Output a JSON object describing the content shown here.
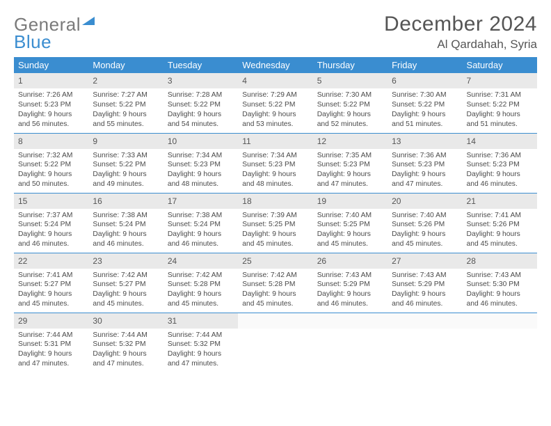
{
  "logo": {
    "text_a": "General",
    "text_b": "Blue"
  },
  "header": {
    "month_title": "December 2024",
    "location": "Al Qardahah, Syria"
  },
  "colors": {
    "header_bg": "#3a8dd0",
    "border": "#3a8dd0",
    "daynum_bg": "#e9e9e9",
    "empty_bg": "#fafafa"
  },
  "weekdays": [
    "Sunday",
    "Monday",
    "Tuesday",
    "Wednesday",
    "Thursday",
    "Friday",
    "Saturday"
  ],
  "weeks": [
    [
      {
        "n": "1",
        "sr": "Sunrise: 7:26 AM",
        "ss": "Sunset: 5:23 PM",
        "dl": "Daylight: 9 hours and 56 minutes."
      },
      {
        "n": "2",
        "sr": "Sunrise: 7:27 AM",
        "ss": "Sunset: 5:22 PM",
        "dl": "Daylight: 9 hours and 55 minutes."
      },
      {
        "n": "3",
        "sr": "Sunrise: 7:28 AM",
        "ss": "Sunset: 5:22 PM",
        "dl": "Daylight: 9 hours and 54 minutes."
      },
      {
        "n": "4",
        "sr": "Sunrise: 7:29 AM",
        "ss": "Sunset: 5:22 PM",
        "dl": "Daylight: 9 hours and 53 minutes."
      },
      {
        "n": "5",
        "sr": "Sunrise: 7:30 AM",
        "ss": "Sunset: 5:22 PM",
        "dl": "Daylight: 9 hours and 52 minutes."
      },
      {
        "n": "6",
        "sr": "Sunrise: 7:30 AM",
        "ss": "Sunset: 5:22 PM",
        "dl": "Daylight: 9 hours and 51 minutes."
      },
      {
        "n": "7",
        "sr": "Sunrise: 7:31 AM",
        "ss": "Sunset: 5:22 PM",
        "dl": "Daylight: 9 hours and 51 minutes."
      }
    ],
    [
      {
        "n": "8",
        "sr": "Sunrise: 7:32 AM",
        "ss": "Sunset: 5:22 PM",
        "dl": "Daylight: 9 hours and 50 minutes."
      },
      {
        "n": "9",
        "sr": "Sunrise: 7:33 AM",
        "ss": "Sunset: 5:22 PM",
        "dl": "Daylight: 9 hours and 49 minutes."
      },
      {
        "n": "10",
        "sr": "Sunrise: 7:34 AM",
        "ss": "Sunset: 5:23 PM",
        "dl": "Daylight: 9 hours and 48 minutes."
      },
      {
        "n": "11",
        "sr": "Sunrise: 7:34 AM",
        "ss": "Sunset: 5:23 PM",
        "dl": "Daylight: 9 hours and 48 minutes."
      },
      {
        "n": "12",
        "sr": "Sunrise: 7:35 AM",
        "ss": "Sunset: 5:23 PM",
        "dl": "Daylight: 9 hours and 47 minutes."
      },
      {
        "n": "13",
        "sr": "Sunrise: 7:36 AM",
        "ss": "Sunset: 5:23 PM",
        "dl": "Daylight: 9 hours and 47 minutes."
      },
      {
        "n": "14",
        "sr": "Sunrise: 7:36 AM",
        "ss": "Sunset: 5:23 PM",
        "dl": "Daylight: 9 hours and 46 minutes."
      }
    ],
    [
      {
        "n": "15",
        "sr": "Sunrise: 7:37 AM",
        "ss": "Sunset: 5:24 PM",
        "dl": "Daylight: 9 hours and 46 minutes."
      },
      {
        "n": "16",
        "sr": "Sunrise: 7:38 AM",
        "ss": "Sunset: 5:24 PM",
        "dl": "Daylight: 9 hours and 46 minutes."
      },
      {
        "n": "17",
        "sr": "Sunrise: 7:38 AM",
        "ss": "Sunset: 5:24 PM",
        "dl": "Daylight: 9 hours and 46 minutes."
      },
      {
        "n": "18",
        "sr": "Sunrise: 7:39 AM",
        "ss": "Sunset: 5:25 PM",
        "dl": "Daylight: 9 hours and 45 minutes."
      },
      {
        "n": "19",
        "sr": "Sunrise: 7:40 AM",
        "ss": "Sunset: 5:25 PM",
        "dl": "Daylight: 9 hours and 45 minutes."
      },
      {
        "n": "20",
        "sr": "Sunrise: 7:40 AM",
        "ss": "Sunset: 5:26 PM",
        "dl": "Daylight: 9 hours and 45 minutes."
      },
      {
        "n": "21",
        "sr": "Sunrise: 7:41 AM",
        "ss": "Sunset: 5:26 PM",
        "dl": "Daylight: 9 hours and 45 minutes."
      }
    ],
    [
      {
        "n": "22",
        "sr": "Sunrise: 7:41 AM",
        "ss": "Sunset: 5:27 PM",
        "dl": "Daylight: 9 hours and 45 minutes."
      },
      {
        "n": "23",
        "sr": "Sunrise: 7:42 AM",
        "ss": "Sunset: 5:27 PM",
        "dl": "Daylight: 9 hours and 45 minutes."
      },
      {
        "n": "24",
        "sr": "Sunrise: 7:42 AM",
        "ss": "Sunset: 5:28 PM",
        "dl": "Daylight: 9 hours and 45 minutes."
      },
      {
        "n": "25",
        "sr": "Sunrise: 7:42 AM",
        "ss": "Sunset: 5:28 PM",
        "dl": "Daylight: 9 hours and 45 minutes."
      },
      {
        "n": "26",
        "sr": "Sunrise: 7:43 AM",
        "ss": "Sunset: 5:29 PM",
        "dl": "Daylight: 9 hours and 46 minutes."
      },
      {
        "n": "27",
        "sr": "Sunrise: 7:43 AM",
        "ss": "Sunset: 5:29 PM",
        "dl": "Daylight: 9 hours and 46 minutes."
      },
      {
        "n": "28",
        "sr": "Sunrise: 7:43 AM",
        "ss": "Sunset: 5:30 PM",
        "dl": "Daylight: 9 hours and 46 minutes."
      }
    ],
    [
      {
        "n": "29",
        "sr": "Sunrise: 7:44 AM",
        "ss": "Sunset: 5:31 PM",
        "dl": "Daylight: 9 hours and 47 minutes."
      },
      {
        "n": "30",
        "sr": "Sunrise: 7:44 AM",
        "ss": "Sunset: 5:32 PM",
        "dl": "Daylight: 9 hours and 47 minutes."
      },
      {
        "n": "31",
        "sr": "Sunrise: 7:44 AM",
        "ss": "Sunset: 5:32 PM",
        "dl": "Daylight: 9 hours and 47 minutes."
      },
      null,
      null,
      null,
      null
    ]
  ]
}
